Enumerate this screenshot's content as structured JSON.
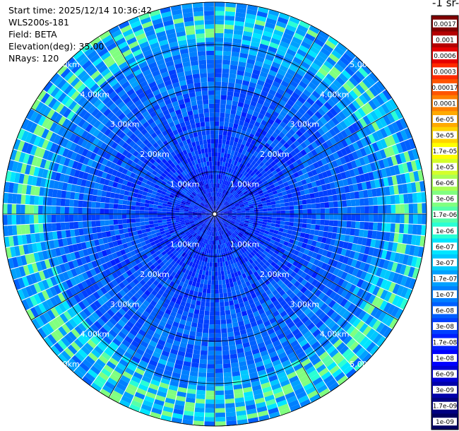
{
  "header": {
    "start_time": "Start time: 2025/12/14 10:36:42",
    "instrument": "WLS200s-181",
    "field": "Field: BETA",
    "elevation": "Elevation(deg): 35.00",
    "nrays": "NRays: 120"
  },
  "colorbar": {
    "unit_label": "-1 sr-",
    "ticks": [
      "0.0017",
      "0.001",
      "0.0006",
      "0.0003",
      "0.00017",
      "0.0001",
      "6e-05",
      "3e-05",
      "1.7e-05",
      "1e-05",
      "6e-06",
      "3e-06",
      "1.7e-06",
      "1e-06",
      "6e-07",
      "3e-07",
      "1.7e-07",
      "1e-07",
      "6e-08",
      "3e-08",
      "1.7e-08",
      "1e-08",
      "6e-09",
      "3e-09",
      "1.7e-09",
      "1e-09"
    ],
    "colors": [
      "#800000",
      "#b40000",
      "#e60000",
      "#ff2a00",
      "#ff5500",
      "#ff8000",
      "#ffaa00",
      "#ffd400",
      "#ffff00",
      "#d4ff2a",
      "#aaff55",
      "#80ff80",
      "#55ffaa",
      "#2affd4",
      "#00e6ff",
      "#00c8ff",
      "#00a0ff",
      "#0080ff",
      "#0060ff",
      "#0040ff",
      "#0020ff",
      "#0000ff",
      "#0000d4",
      "#0000aa",
      "#000080",
      "#000060"
    ]
  },
  "chart_data": {
    "type": "heatmap",
    "projection": "polar-ppi",
    "nrays": 120,
    "range_rings_km": [
      1,
      2,
      3,
      4,
      5
    ],
    "range_labels": [
      "1.00km",
      "2.00km",
      "3.00km",
      "4.00km",
      "5.00km"
    ],
    "max_range_km": 5.0,
    "field": "BETA",
    "elevation_deg": 35.0,
    "colorscale": "log",
    "value_range": [
      1e-09,
      0.0017
    ]
  }
}
